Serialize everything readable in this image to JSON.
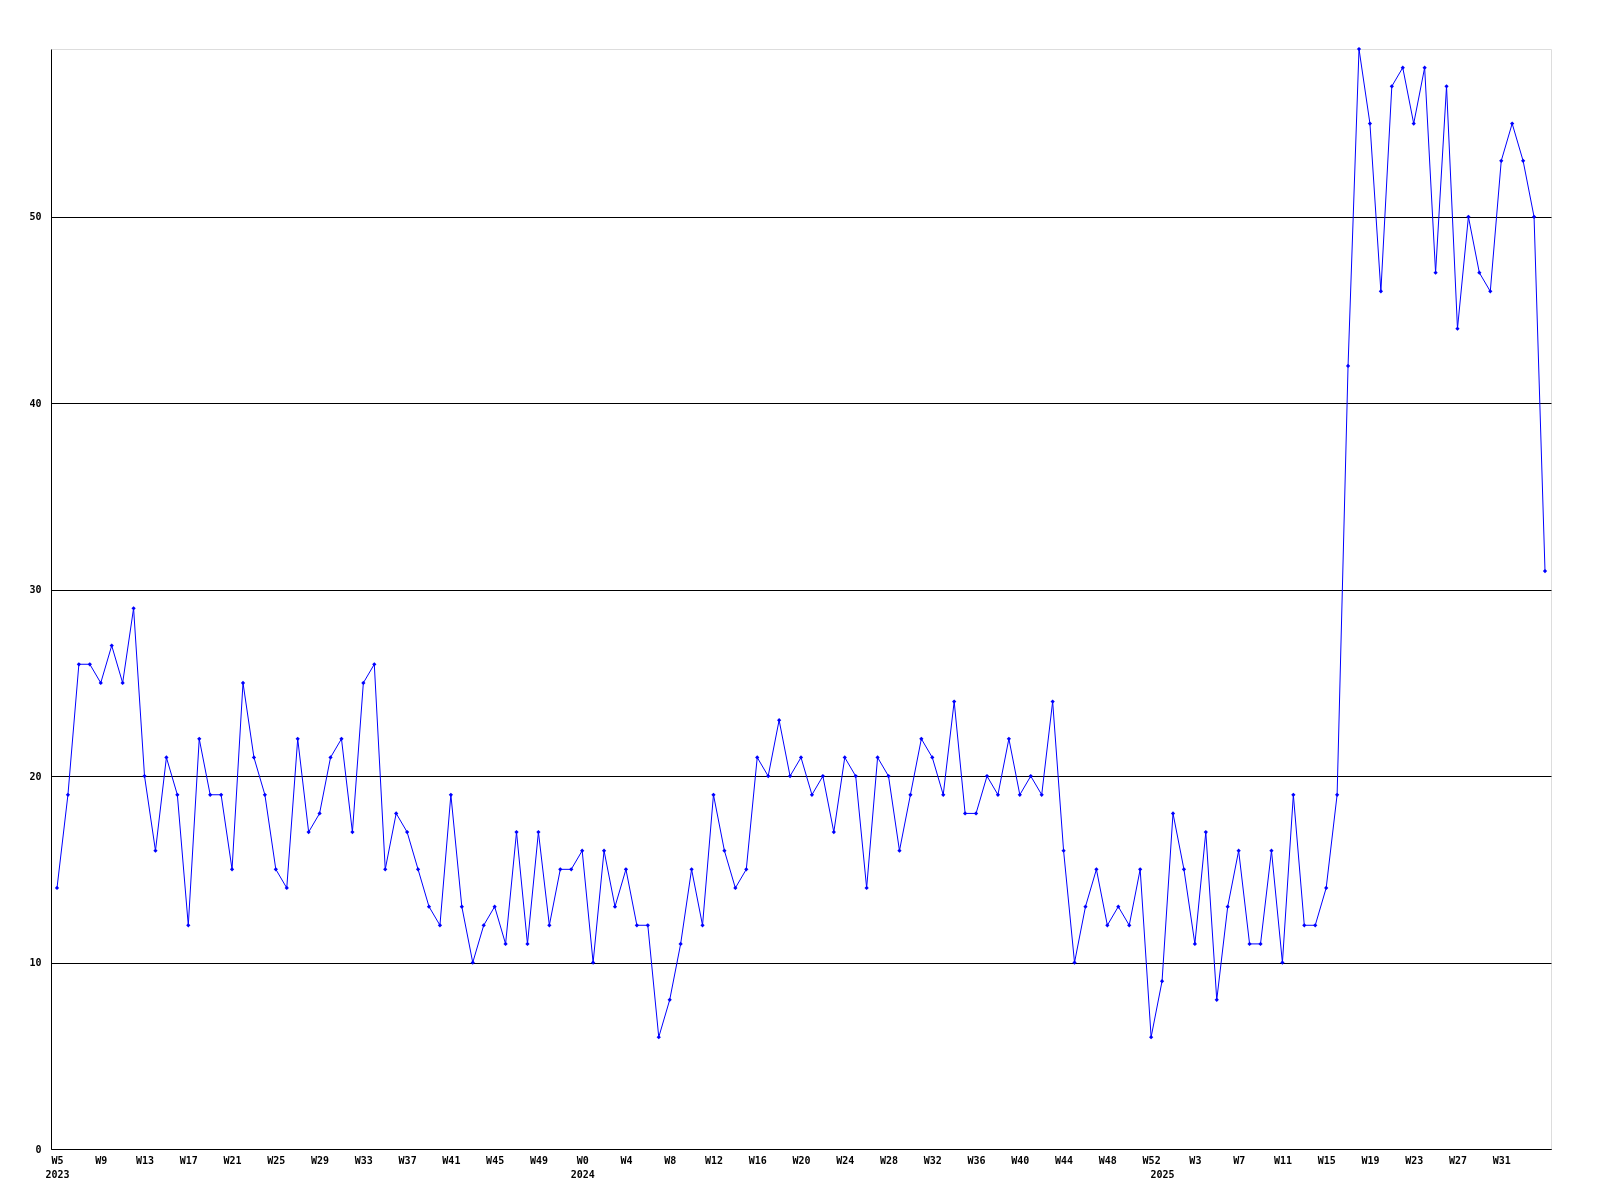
{
  "chart_data": {
    "type": "line",
    "categories": [
      "W5\n2023",
      null,
      null,
      null,
      "W9",
      null,
      null,
      null,
      "W13",
      null,
      null,
      null,
      "W17",
      null,
      null,
      null,
      "W21",
      null,
      null,
      null,
      "W25",
      null,
      null,
      null,
      "W29",
      null,
      null,
      null,
      "W33",
      null,
      null,
      null,
      "W37",
      null,
      null,
      null,
      "W41",
      null,
      null,
      null,
      "W45",
      null,
      null,
      null,
      "W49",
      null,
      null,
      null,
      "W0\n2024",
      null,
      null,
      null,
      "W4",
      null,
      null,
      null,
      "W8",
      null,
      null,
      null,
      "W12",
      null,
      null,
      null,
      "W16",
      null,
      null,
      null,
      "W20",
      null,
      null,
      null,
      "W24",
      null,
      null,
      null,
      "W28",
      null,
      null,
      null,
      "W32",
      null,
      null,
      null,
      "W36",
      null,
      null,
      null,
      "W40",
      null,
      null,
      null,
      "W44",
      null,
      null,
      null,
      "W48",
      null,
      null,
      null,
      "W52",
      "\n2025",
      null,
      null,
      "W3",
      null,
      null,
      null,
      "W7",
      null,
      null,
      null,
      "W11",
      null,
      null,
      null,
      "W15",
      null,
      null,
      null,
      "W19",
      null,
      null,
      null,
      "W23",
      null,
      null,
      null,
      "W27",
      null,
      null,
      null,
      "W31",
      null,
      null,
      null,
      null
    ],
    "series": [
      {
        "color": "#0000ff",
        "values": [
          14,
          19,
          26,
          26,
          25,
          27,
          25,
          29,
          20,
          16,
          21,
          19,
          12,
          22,
          19,
          19,
          15,
          25,
          21,
          19,
          15,
          14,
          22,
          17,
          18,
          21,
          22,
          17,
          25,
          26,
          15,
          18,
          17,
          15,
          13,
          12,
          19,
          13,
          10,
          12,
          13,
          11,
          17,
          11,
          17,
          12,
          15,
          15,
          16,
          10,
          16,
          13,
          15,
          12,
          12,
          6,
          8,
          11,
          15,
          12,
          19,
          16,
          14,
          15,
          21,
          20,
          23,
          20,
          21,
          19,
          20,
          17,
          21,
          20,
          14,
          21,
          20,
          16,
          19,
          22,
          21,
          19,
          24,
          18,
          18,
          20,
          19,
          22,
          19,
          20,
          19,
          24,
          16,
          10,
          13,
          15,
          12,
          13,
          12,
          15,
          6,
          9,
          18,
          15,
          11,
          17,
          8,
          13,
          16,
          11,
          11,
          16,
          10,
          19,
          12,
          12,
          14,
          19,
          42,
          59,
          55,
          46,
          57,
          58,
          55,
          58,
          47,
          57,
          44,
          50,
          47,
          46,
          53,
          55,
          53,
          50,
          31
        ]
      }
    ],
    "ylim": [
      0,
      59
    ],
    "yticks": [
      0,
      10,
      20,
      30,
      40,
      50
    ],
    "grid": "y",
    "marker": "diamond"
  }
}
